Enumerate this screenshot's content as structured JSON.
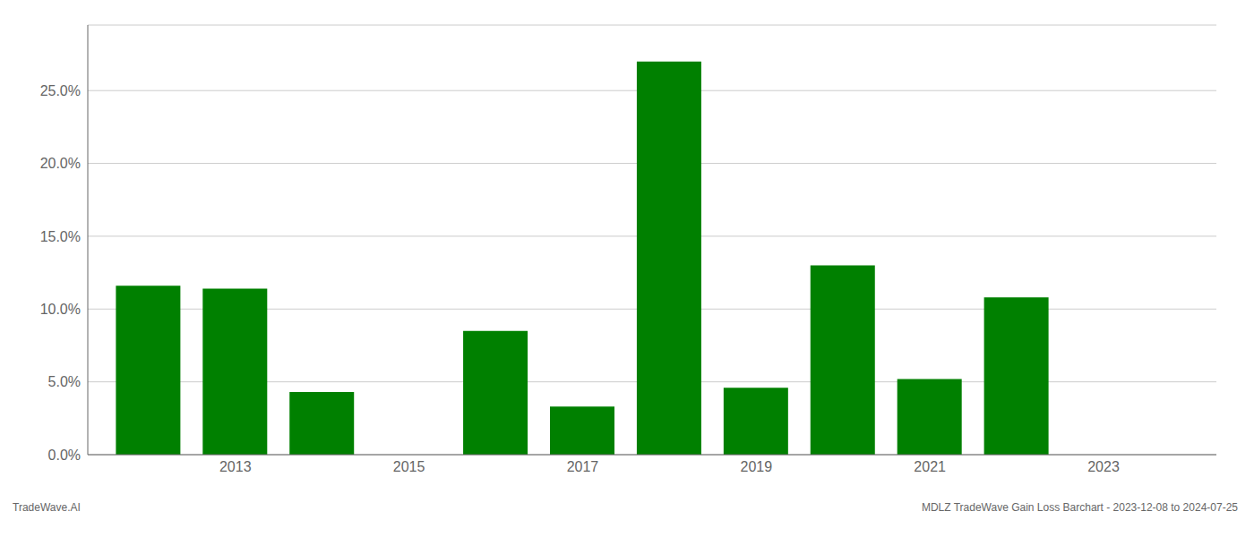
{
  "chart_data": {
    "type": "bar",
    "x": [
      2012,
      2013,
      2014,
      2016,
      2017,
      2018,
      2019,
      2020,
      2021,
      2022
    ],
    "values": [
      0.116,
      0.114,
      0.043,
      0.085,
      0.033,
      0.27,
      0.046,
      0.13,
      0.052,
      0.108
    ],
    "color": "#008000",
    "xlim": [
      2011.3,
      2024.3
    ],
    "xticks": [
      2013,
      2015,
      2017,
      2019,
      2021,
      2023
    ],
    "ylim": [
      0,
      0.295
    ],
    "yticks": [
      {
        "value": 0.0,
        "label": "0.0%"
      },
      {
        "value": 0.05,
        "label": "5.0%"
      },
      {
        "value": 0.1,
        "label": "10.0%"
      },
      {
        "value": 0.15,
        "label": "15.0%"
      },
      {
        "value": 0.2,
        "label": "20.0%"
      },
      {
        "value": 0.25,
        "label": "25.0%"
      }
    ],
    "grid": true,
    "annotations": [
      "TradeWave.AI",
      "MDLZ TradeWave Gain Loss Barchart - 2023-12-08 to 2024-07-25"
    ]
  }
}
